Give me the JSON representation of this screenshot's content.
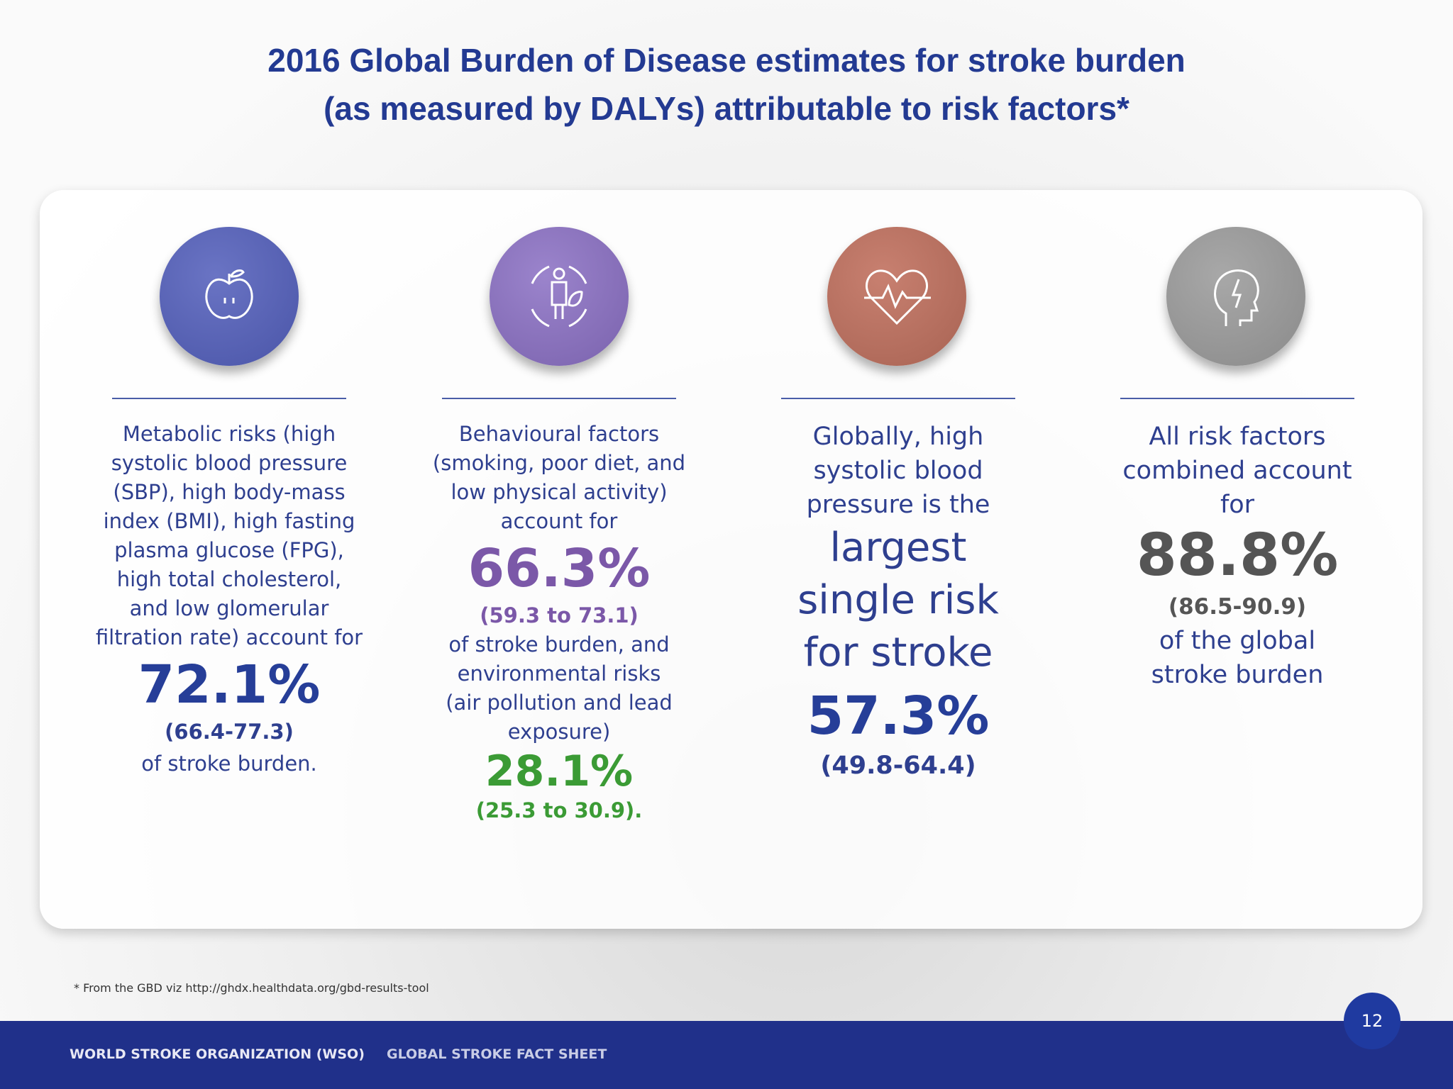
{
  "title": {
    "line1": "2016 Global Burden of Disease estimates for stroke burden",
    "line2": "(as measured by DALYs) attributable to risk factors*"
  },
  "cards": [
    {
      "description": "Metabolic risks (high systolic blood pressure (SBP), high body-mass index (BMI), high fasting plasma glucose (FPG), high total cholesterol, and low glomerular filtration rate) account for",
      "value": "72.1%",
      "range": "(66.4-77.3)",
      "suffix": "of stroke burden."
    },
    {
      "description": "Behavioural factors (smoking, poor diet, and low physical activity) account for",
      "value": "66.3%",
      "range": "(59.3 to 73.1)",
      "middle": "of stroke burden, and environmental risks (air pollution and lead exposure)",
      "value2": "28.1%",
      "range2": "(25.3 to 30.9)."
    },
    {
      "description": "Globally, high systolic blood pressure is the",
      "emphasis": "largest single risk for stroke",
      "value": "57.3%",
      "range": "(49.8-64.4)"
    },
    {
      "description": "All risk factors combined account for",
      "value": "88.8%",
      "range": "(86.5-90.9)",
      "suffix": "of the global stroke burden"
    }
  ],
  "footnote": "* From the GBD viz http://ghdx.healthdata.org/gbd-results-tool",
  "footer": {
    "organization": "WORLD STROKE ORGANIZATION (WSO)",
    "document": "GLOBAL STROKE FACT SHEET",
    "page": "12"
  }
}
